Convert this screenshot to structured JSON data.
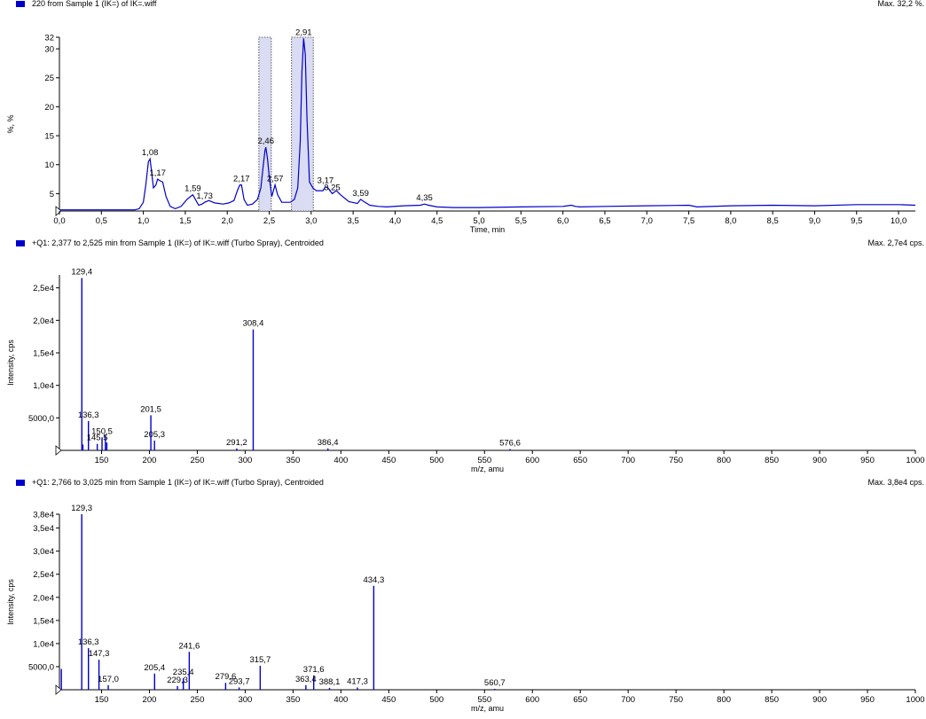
{
  "chart_data": [
    {
      "type": "line",
      "header": "220 from Sample 1 (IK=) of IK=.wiff",
      "max_label": "Max. 32,2 %.",
      "xlabel": "Time, min",
      "ylabel": "%, %",
      "xlim": [
        0,
        10.2
      ],
      "ylim": [
        2,
        32
      ],
      "yticks": [
        5,
        10,
        15,
        20,
        25,
        30,
        32
      ],
      "xticks": [
        0,
        0.5,
        1.0,
        1.5,
        2.0,
        2.5,
        3.0,
        3.5,
        4.0,
        4.5,
        5.0,
        5.5,
        6.0,
        6.5,
        7.0,
        7.5,
        8.0,
        8.5,
        9.0,
        9.5,
        10.0
      ],
      "x_tick_labels": [
        "0,0",
        "0,5",
        "1,0",
        "1,5",
        "2,0",
        "2,5",
        "3,0",
        "3,5",
        "4,0",
        "4,5",
        "5,0",
        "5,5",
        "6,0",
        "6,5",
        "7,0",
        "7,5",
        "8,0",
        "8,5",
        "9,0",
        "9,5",
        "10,0"
      ],
      "y_tick_labels": [
        "5",
        "10",
        "15",
        "20",
        "25",
        "30",
        "32"
      ],
      "series": [
        {
          "color": "#0000cc",
          "x": [
            0.0,
            0.15,
            0.9,
            0.95,
            1.0,
            1.03,
            1.06,
            1.08,
            1.1,
            1.12,
            1.15,
            1.17,
            1.2,
            1.23,
            1.27,
            1.32,
            1.38,
            1.45,
            1.52,
            1.57,
            1.59,
            1.62,
            1.66,
            1.7,
            1.73,
            1.78,
            1.85,
            1.95,
            2.02,
            2.08,
            2.12,
            2.15,
            2.17,
            2.2,
            2.24,
            2.3,
            2.36,
            2.4,
            2.43,
            2.45,
            2.46,
            2.48,
            2.5,
            2.53,
            2.55,
            2.57,
            2.6,
            2.65,
            2.7,
            2.75,
            2.8,
            2.84,
            2.87,
            2.89,
            2.91,
            2.93,
            2.95,
            2.98,
            3.02,
            3.06,
            3.1,
            3.14,
            3.17,
            3.2,
            3.25,
            3.3,
            3.35,
            3.45,
            3.55,
            3.59,
            3.63,
            3.7,
            3.8,
            3.9,
            4.1,
            4.3,
            4.35,
            4.4,
            4.5,
            4.7,
            5.0,
            5.5,
            6.0,
            6.1,
            6.15,
            6.2,
            6.5,
            7.0,
            7.5,
            7.6,
            8.0,
            8.5,
            9.0,
            9.5,
            10.0,
            10.2
          ],
          "y": [
            2.2,
            2.2,
            2.2,
            2.4,
            3.5,
            6.5,
            10.5,
            11.0,
            8.5,
            6.0,
            6.5,
            7.5,
            7.2,
            7.0,
            4.5,
            2.8,
            2.4,
            2.8,
            4.0,
            4.6,
            4.8,
            4.0,
            3.0,
            3.2,
            3.5,
            3.8,
            3.4,
            3.2,
            3.4,
            3.8,
            5.5,
            6.5,
            6.5,
            4.0,
            3.0,
            3.2,
            4.0,
            6.0,
            10.0,
            12.5,
            13.0,
            11.0,
            8.0,
            4.5,
            5.5,
            6.5,
            4.8,
            3.5,
            3.5,
            3.5,
            4.0,
            6.0,
            14.0,
            26.0,
            31.8,
            29.0,
            18.0,
            7.0,
            6.0,
            5.5,
            5.5,
            5.5,
            6.2,
            6.0,
            5.0,
            5.5,
            4.8,
            3.6,
            3.3,
            4.0,
            3.6,
            3.0,
            2.8,
            2.7,
            2.9,
            3.0,
            3.2,
            3.0,
            2.7,
            2.6,
            2.6,
            2.7,
            2.8,
            3.0,
            2.8,
            2.7,
            2.8,
            2.9,
            3.0,
            2.7,
            2.9,
            3.0,
            2.9,
            3.1,
            3.1,
            3.0
          ]
        }
      ],
      "peak_labels": [
        {
          "x": 1.08,
          "y": 11.0,
          "text": "1,08"
        },
        {
          "x": 1.17,
          "y": 7.5,
          "text": "1,17"
        },
        {
          "x": 1.59,
          "y": 4.8,
          "text": "1,59"
        },
        {
          "x": 1.73,
          "y": 3.5,
          "text": "1,73"
        },
        {
          "x": 2.17,
          "y": 6.5,
          "text": "2,17"
        },
        {
          "x": 2.46,
          "y": 13.0,
          "text": "2,46"
        },
        {
          "x": 2.57,
          "y": 6.5,
          "text": "2,57"
        },
        {
          "x": 2.91,
          "y": 31.8,
          "text": "2,91"
        },
        {
          "x": 3.17,
          "y": 6.2,
          "text": "3,17"
        },
        {
          "x": 3.25,
          "y": 5.0,
          "text": "3,25"
        },
        {
          "x": 3.59,
          "y": 4.0,
          "text": "3,59"
        },
        {
          "x": 4.35,
          "y": 3.2,
          "text": "4,35"
        }
      ],
      "highlight_regions": [
        [
          2.377,
          2.525
        ],
        [
          2.766,
          3.025
        ]
      ]
    },
    {
      "type": "bar",
      "header": "+Q1: 2,377 to 2,525 min from Sample 1 (IK=) of IK=.wiff (Turbo Spray), Centroided",
      "max_label": "Max. 2,7e4 cps.",
      "xlabel": "m/z, amu",
      "ylabel": "Intensity, cps",
      "xlim": [
        106,
        1000
      ],
      "ylim": [
        0,
        27000
      ],
      "yticks": [
        5000,
        10000,
        15000,
        20000,
        25000
      ],
      "y_tick_labels": [
        "5000,0",
        "1,0e4",
        "1,5e4",
        "2,0e4",
        "2,5e4"
      ],
      "xticks": [
        150,
        200,
        250,
        300,
        350,
        400,
        450,
        500,
        550,
        600,
        650,
        700,
        750,
        800,
        850,
        900,
        950,
        1000
      ],
      "x_tick_labels": [
        "150",
        "200",
        "250",
        "300",
        "350",
        "400",
        "450",
        "500",
        "550",
        "600",
        "650",
        "700",
        "750",
        "800",
        "850",
        "900",
        "950",
        "1000"
      ],
      "bars": [
        {
          "x": 129.4,
          "y": 26500
        },
        {
          "x": 130.5,
          "y": 900
        },
        {
          "x": 136.3,
          "y": 4500
        },
        {
          "x": 145.5,
          "y": 1000
        },
        {
          "x": 150.5,
          "y": 2000
        },
        {
          "x": 154.0,
          "y": 2300
        },
        {
          "x": 155.5,
          "y": 1200
        },
        {
          "x": 201.5,
          "y": 5400
        },
        {
          "x": 205.3,
          "y": 1500
        },
        {
          "x": 291.2,
          "y": 300
        },
        {
          "x": 308.4,
          "y": 18600
        },
        {
          "x": 386.4,
          "y": 300
        },
        {
          "x": 576.6,
          "y": 200
        }
      ],
      "labels": [
        {
          "x": 129.4,
          "y": 26500,
          "text": "129,4"
        },
        {
          "x": 136.3,
          "y": 4500,
          "text": "136,3"
        },
        {
          "x": 145.5,
          "y": 1000,
          "text": "145,5"
        },
        {
          "x": 150.5,
          "y": 2000,
          "text": "150,5"
        },
        {
          "x": 201.5,
          "y": 5400,
          "text": "201,5"
        },
        {
          "x": 205.3,
          "y": 1500,
          "text": "205,3"
        },
        {
          "x": 291.2,
          "y": 300,
          "text": "291,2"
        },
        {
          "x": 308.4,
          "y": 18600,
          "text": "308,4"
        },
        {
          "x": 386.4,
          "y": 300,
          "text": "386,4"
        },
        {
          "x": 576.6,
          "y": 200,
          "text": "576,6"
        }
      ]
    },
    {
      "type": "bar",
      "header": "+Q1: 2,766 to 3,025 min from Sample 1 (IK=) of IK=.wiff (Turbo Spray), Centroided",
      "max_label": "Max. 3,8e4 cps.",
      "xlabel": "m/z, amu",
      "ylabel": "Intensity, cps",
      "xlim": [
        106,
        1000
      ],
      "ylim": [
        0,
        38000
      ],
      "yticks": [
        5000,
        10000,
        15000,
        20000,
        25000,
        30000,
        35000,
        38000
      ],
      "y_tick_labels": [
        "5000,0",
        "1,0e4",
        "1,5e4",
        "2,0e4",
        "2,5e4",
        "3,0e4",
        "3,5e4",
        "3,8e4"
      ],
      "xticks": [
        150,
        200,
        250,
        300,
        350,
        400,
        450,
        500,
        550,
        600,
        650,
        700,
        750,
        800,
        850,
        900,
        950,
        1000
      ],
      "x_tick_labels": [
        "150",
        "200",
        "250",
        "300",
        "350",
        "400",
        "450",
        "500",
        "550",
        "600",
        "650",
        "700",
        "750",
        "800",
        "850",
        "900",
        "950",
        "1000"
      ],
      "bars": [
        {
          "x": 108.0,
          "y": 4500
        },
        {
          "x": 129.3,
          "y": 38000
        },
        {
          "x": 136.3,
          "y": 9000
        },
        {
          "x": 147.3,
          "y": 6500
        },
        {
          "x": 157.0,
          "y": 1000
        },
        {
          "x": 205.4,
          "y": 3500
        },
        {
          "x": 229.3,
          "y": 800
        },
        {
          "x": 235.4,
          "y": 2500
        },
        {
          "x": 241.6,
          "y": 8200
        },
        {
          "x": 279.6,
          "y": 1500
        },
        {
          "x": 293.7,
          "y": 500
        },
        {
          "x": 315.7,
          "y": 5200
        },
        {
          "x": 363.4,
          "y": 1000
        },
        {
          "x": 371.6,
          "y": 3100
        },
        {
          "x": 388.1,
          "y": 400
        },
        {
          "x": 417.3,
          "y": 500
        },
        {
          "x": 434.3,
          "y": 22500
        },
        {
          "x": 560.7,
          "y": 200
        }
      ],
      "labels": [
        {
          "x": 129.3,
          "y": 38000,
          "text": "129,3"
        },
        {
          "x": 136.3,
          "y": 9000,
          "text": "136,3"
        },
        {
          "x": 147.3,
          "y": 6500,
          "text": "147,3"
        },
        {
          "x": 157.0,
          "y": 1000,
          "text": "157,0"
        },
        {
          "x": 205.4,
          "y": 3500,
          "text": "205,4"
        },
        {
          "x": 229.3,
          "y": 800,
          "text": "229,3"
        },
        {
          "x": 235.4,
          "y": 2500,
          "text": "235,4"
        },
        {
          "x": 241.6,
          "y": 8200,
          "text": "241,6"
        },
        {
          "x": 279.6,
          "y": 1500,
          "text": "279,6"
        },
        {
          "x": 293.7,
          "y": 500,
          "text": "293,7"
        },
        {
          "x": 315.7,
          "y": 5200,
          "text": "315,7"
        },
        {
          "x": 363.4,
          "y": 1000,
          "text": "363,4"
        },
        {
          "x": 371.6,
          "y": 3100,
          "text": "371,6"
        },
        {
          "x": 388.1,
          "y": 400,
          "text": "388,1"
        },
        {
          "x": 417.3,
          "y": 500,
          "text": "417,3"
        },
        {
          "x": 434.3,
          "y": 22500,
          "text": "434,3"
        },
        {
          "x": 560.7,
          "y": 200,
          "text": "560,7"
        }
      ]
    }
  ],
  "colors": {
    "trace": "#0000cc",
    "highlight_fill": "#dadcf4",
    "highlight_border": "#333333",
    "marker": "#0000cc"
  }
}
